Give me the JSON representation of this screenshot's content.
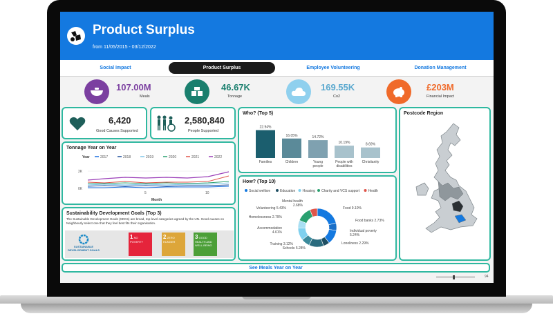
{
  "header": {
    "title": "Product Surplus",
    "subtitle": "from 11/05/2015 - 03/12/2022"
  },
  "tabs": [
    {
      "label": "Social Impact"
    },
    {
      "label": "Product Surplus"
    },
    {
      "label": "Employee Volunteering"
    },
    {
      "label": "Donation Management"
    }
  ],
  "kpis": [
    {
      "value": "107.00M",
      "label": "Meals",
      "color": "#7b3fa0",
      "icon": "bowl-icon"
    },
    {
      "value": "46.67K",
      "label": "Tonnage",
      "color": "#1a7f6e",
      "icon": "boxes-icon"
    },
    {
      "value": "169.55K",
      "label": "Co2",
      "color": "#8fd0ee",
      "icon": "cloud-icon"
    },
    {
      "value": "£203M",
      "label": "Financial Impact",
      "color": "#f06a2a",
      "icon": "piggy-bank-icon"
    }
  ],
  "stats": {
    "good_causes": {
      "value": "6,420",
      "label": "Good Causes Supported",
      "icon": "heart-icon"
    },
    "people": {
      "value": "2,580,840",
      "label": "People Supported",
      "icon": "people-icon"
    }
  },
  "tonnage_chart": {
    "title": "Tonnage Year on Year",
    "legend_title": "Year",
    "x_label": "Month",
    "y_ticks": [
      "2K",
      "0K"
    ],
    "x_ticks": [
      "5",
      "10"
    ],
    "years": [
      "2017",
      "2018",
      "2019",
      "2020",
      "2021",
      "2022"
    ],
    "colors": [
      "#1a6fe0",
      "#1f4f9b",
      "#7fc6e8",
      "#2aa070",
      "#e0554a",
      "#9b3fb8"
    ]
  },
  "chart_data": [
    {
      "type": "bar",
      "title": "Who? (Top 5)",
      "categories": [
        "Families",
        "Children",
        "Young people",
        "People with disabilities",
        "Christianity"
      ],
      "values": [
        22.94,
        16.05,
        14.72,
        10.19,
        8.69
      ],
      "value_labels": [
        "22.94%",
        "16.05%",
        "14.72%",
        "10.19%",
        "8.69%"
      ],
      "colors": [
        "#1b5e6e",
        "#5b8a99",
        "#7fa1b0",
        "#a8c2cc",
        "#a8c2cc"
      ],
      "ylim": [
        0,
        25
      ]
    },
    {
      "type": "pie",
      "title": "How? (Top 10)",
      "legend": [
        {
          "name": "Social welfare",
          "color": "#1479e0"
        },
        {
          "name": "Education",
          "color": "#1f4f63"
        },
        {
          "name": "Housing",
          "color": "#7fd0ee"
        },
        {
          "name": "Charity and VCS support",
          "color": "#2aa070"
        },
        {
          "name": "Health",
          "color": "#e0554a"
        }
      ],
      "slices": [
        {
          "name": "Food",
          "value": 9.1,
          "label": "Food 9.10%",
          "color": "#1479e0"
        },
        {
          "name": "Food banks",
          "value": 2.73,
          "label": "Food banks 2.73%",
          "color": "#1a6fc8"
        },
        {
          "name": "Individual poverty",
          "value": 5.24,
          "label": "Individual poverty 5.24%",
          "color": "#1479e0"
        },
        {
          "name": "Loneliness",
          "value": 2.29,
          "label": "Loneliness 2.29%",
          "color": "#1f4f63"
        },
        {
          "name": "Schools",
          "value": 5.28,
          "label": "Schools 5.28%",
          "color": "#2a6b7e"
        },
        {
          "name": "Training",
          "value": 3.12,
          "label": "Training 3.12%",
          "color": "#3b8a9b"
        },
        {
          "name": "Accommodation",
          "value": 4.61,
          "label": "Accommodation 4.61%",
          "color": "#7fd0ee"
        },
        {
          "name": "Homelessness",
          "value": 2.79,
          "label": "Homelessness 2.79%",
          "color": "#a9dff3"
        },
        {
          "name": "Volunteering",
          "value": 5.43,
          "label": "Volunteering 5.43%",
          "color": "#2aa070"
        },
        {
          "name": "Mental health",
          "value": 2.68,
          "label": "Mental health 2.68%",
          "color": "#e0554a"
        }
      ]
    }
  ],
  "postcode": {
    "title": "Postcode Region"
  },
  "sdg": {
    "title": "Sustainability Development Goals (Top 3)",
    "description": "The Sustainable Development Goals (SDGs) are broad, top-level categories agreed by the UN. Good causes on Neighbourly select one that they feel best fits their organisation.",
    "logo_text": "SUSTAINABLE DEVELOPMENT GOALS",
    "goals": [
      {
        "num": "1",
        "label": "NO POVERTY",
        "color": "#e5243b"
      },
      {
        "num": "2",
        "label": "ZERO HUNGER",
        "color": "#dda63a"
      },
      {
        "num": "3",
        "label": "GOOD HEALTH AND WELL-BEING",
        "color": "#4c9f38"
      }
    ]
  },
  "footer": {
    "see_meals": "See Meals Year on Year",
    "zoom": "94"
  }
}
